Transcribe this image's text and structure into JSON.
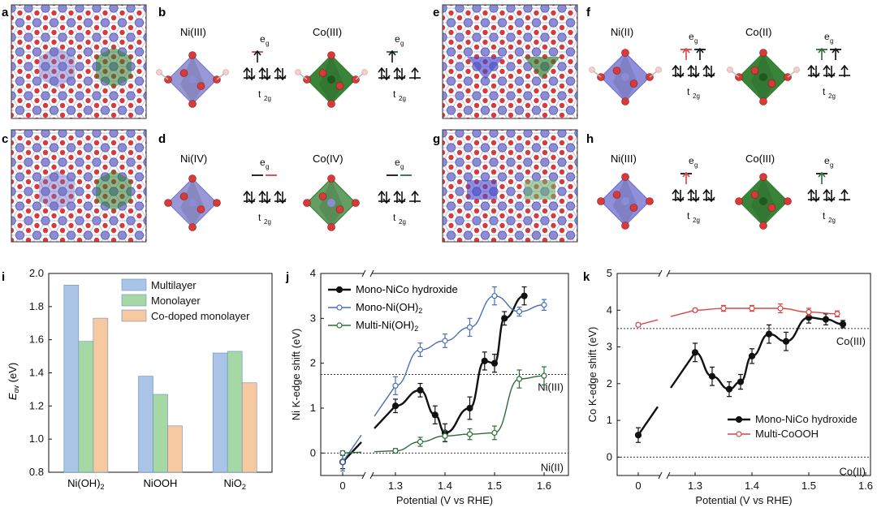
{
  "figure": {
    "panel_labels": {
      "a": "a",
      "b": "b",
      "c": "c",
      "d": "d",
      "e": "e",
      "f": "f",
      "g": "g",
      "h": "h",
      "i": "i",
      "j": "j",
      "k": "k"
    },
    "top_panels": {
      "b": {
        "left_ion": "Ni(III)",
        "right_ion": "Co(III)"
      },
      "d": {
        "left_ion": "Ni(IV)",
        "right_ion": "Co(IV)"
      },
      "f": {
        "left_ion": "Ni(II)",
        "right_ion": "Co(II)"
      },
      "h": {
        "left_ion": "Ni(III)",
        "right_ion": "Co(III)"
      },
      "eg": "e",
      "eg_sub": "g",
      "t2g": "t",
      "t2g_sub": "2g"
    },
    "colors": {
      "ni": "#6f6fc8",
      "co": "#2f7d2f",
      "o": "#d43030",
      "h": "#f0c8c8",
      "blue": "#4a6fb5",
      "black": "#111111",
      "green": "#2e6b3a",
      "red": "#d64545",
      "bar_multi": "#a9c4e6",
      "bar_mono": "#a6d8a6",
      "bar_codoped": "#f6c9a0"
    }
  },
  "chart_data": [
    {
      "type": "bar",
      "panel": "i",
      "categories": [
        "Ni(OH)",
        "NiOOH",
        "NiO"
      ],
      "category_subscripts": [
        "2",
        "",
        "2"
      ],
      "series": [
        {
          "name": "Multilayer",
          "values": [
            1.93,
            1.38,
            1.52
          ]
        },
        {
          "name": "Monolayer",
          "values": [
            1.59,
            1.27,
            1.53
          ]
        },
        {
          "name": "Co-doped monolayer",
          "values": [
            1.73,
            1.08,
            1.34
          ]
        }
      ],
      "ylabel_main": "E",
      "ylabel_sub": "ov",
      "ylabel_unit": " (eV)",
      "ylim": [
        0.8,
        2.0
      ],
      "yticks": [
        "0.8",
        "1.0",
        "1.2",
        "1.4",
        "1.6",
        "1.8",
        "2.0"
      ],
      "legend": "top-right"
    },
    {
      "type": "line",
      "panel": "j",
      "xlabel": "Potential (V vs RHE)",
      "ylabel": "Ni K-edge shift (eV)",
      "x_ticks": [
        "0",
        "1.3",
        "1.4",
        "1.5",
        "1.6"
      ],
      "ylim": [
        -0.5,
        4
      ],
      "yticks": [
        "0",
        "1",
        "2",
        "3",
        "4"
      ],
      "ref_lines": [
        {
          "y": 1.75,
          "label": "Ni(III)"
        },
        {
          "y": 0,
          "label": "Ni(II)"
        }
      ],
      "series": [
        {
          "name": "Mono-NiCo hydroxide",
          "name_sub": "",
          "x": [
            0,
            1.3,
            1.35,
            1.38,
            1.4,
            1.45,
            1.48,
            1.5,
            1.52,
            1.56
          ],
          "y": [
            -0.2,
            1.05,
            1.4,
            0.85,
            0.45,
            1.0,
            2.05,
            2.0,
            3.0,
            3.5
          ],
          "err": [
            0.15,
            0.15,
            0.15,
            0.2,
            0.2,
            0.25,
            0.2,
            0.2,
            0.15,
            0.2
          ]
        },
        {
          "name": "Mono-Ni(OH)",
          "name_sub": "2",
          "x": [
            0,
            1.3,
            1.35,
            1.4,
            1.45,
            1.5,
            1.55,
            1.6
          ],
          "y": [
            -0.2,
            1.5,
            2.3,
            2.5,
            2.8,
            3.5,
            3.15,
            3.3
          ],
          "err": [
            0.2,
            0.2,
            0.15,
            0.15,
            0.2,
            0.2,
            0.1,
            0.12
          ]
        },
        {
          "name": "Multi-Ni(OH)",
          "name_sub": "2",
          "x": [
            0,
            1.3,
            1.35,
            1.4,
            1.45,
            1.5,
            1.55,
            1.6
          ],
          "y": [
            0,
            0.05,
            0.25,
            0.38,
            0.42,
            0.45,
            1.65,
            1.72
          ],
          "err": [
            0.05,
            0.05,
            0.1,
            0.12,
            0.12,
            0.15,
            0.2,
            0.2
          ]
        }
      ],
      "legend": "top-left"
    },
    {
      "type": "line",
      "panel": "k",
      "xlabel": "Potential (V vs RHE)",
      "ylabel": "Co K-edge shift (eV)",
      "x_ticks": [
        "0",
        "1.3",
        "1.4",
        "1.5",
        "1.6"
      ],
      "ylim": [
        -0.5,
        5
      ],
      "yticks": [
        "0",
        "1",
        "2",
        "3",
        "4",
        "5"
      ],
      "ref_lines": [
        {
          "y": 3.5,
          "label": "Co(III)"
        },
        {
          "y": 0,
          "label": "Co(II)"
        }
      ],
      "series": [
        {
          "name": "Mono-NiCo hydroxide",
          "x": [
            0,
            1.3,
            1.33,
            1.36,
            1.38,
            1.4,
            1.43,
            1.46,
            1.5,
            1.53,
            1.56
          ],
          "y": [
            0.6,
            2.85,
            2.2,
            1.85,
            2.05,
            2.75,
            3.35,
            3.15,
            3.8,
            3.75,
            3.62
          ],
          "err": [
            0.2,
            0.25,
            0.25,
            0.2,
            0.2,
            0.2,
            0.25,
            0.25,
            0.15,
            0.15,
            0.1
          ]
        },
        {
          "name": "Multi-CoOOH",
          "x": [
            0,
            1.3,
            1.35,
            1.4,
            1.45,
            1.5,
            1.55
          ],
          "y": [
            3.6,
            4.0,
            4.05,
            4.05,
            4.05,
            3.95,
            3.9
          ],
          "err": [
            0.05,
            0.05,
            0.08,
            0.08,
            0.12,
            0.1,
            0.08
          ]
        }
      ],
      "legend": "bottom-right"
    }
  ]
}
